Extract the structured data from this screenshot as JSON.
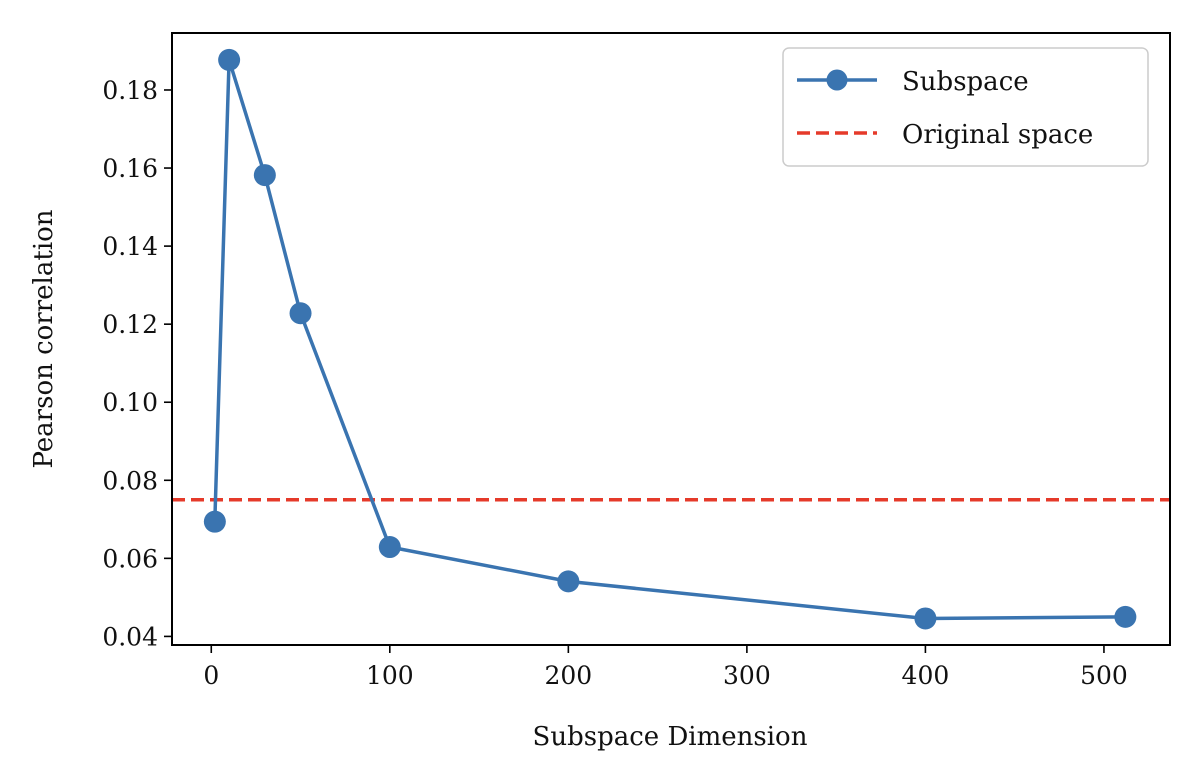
{
  "chart_data": {
    "type": "line",
    "title": "",
    "xlabel": "Subspace Dimension",
    "ylabel": "Pearson correlation",
    "xlim": [
      -22,
      537
    ],
    "ylim": [
      0.0378,
      0.1946
    ],
    "xticks": [
      0,
      100,
      200,
      300,
      400,
      500
    ],
    "xtick_labels": [
      "0",
      "100",
      "200",
      "300",
      "400",
      "500"
    ],
    "yticks": [
      0.04,
      0.06,
      0.08,
      0.1,
      0.12,
      0.14,
      0.16,
      0.18
    ],
    "ytick_labels": [
      "0.04",
      "0.06",
      "0.08",
      "0.10",
      "0.12",
      "0.14",
      "0.16",
      "0.18"
    ],
    "grid": false,
    "legend_position": "top-right",
    "series": [
      {
        "name": "Subspace",
        "style": "line-marker",
        "color": "#3a74b0",
        "x": [
          2,
          10,
          30,
          50,
          100,
          200,
          400,
          512
        ],
        "y": [
          0.0694,
          0.1877,
          0.1582,
          0.1228,
          0.0629,
          0.0541,
          0.0446,
          0.045
        ]
      },
      {
        "name": "Original space",
        "style": "dashed-hline",
        "color": "#e53a2a",
        "y": 0.075
      }
    ]
  }
}
